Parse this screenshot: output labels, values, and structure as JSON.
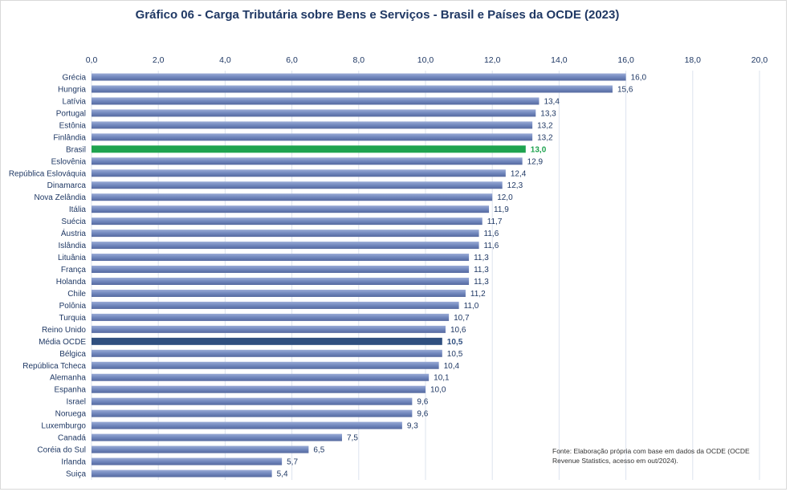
{
  "chart_data": {
    "type": "bar",
    "orientation": "horizontal",
    "title": "Gráfico 06 - Carga Tributária sobre Bens e Serviços - Brasil e Países da OCDE (2023)",
    "xlim": [
      0,
      20
    ],
    "x_ticks": [
      "0,0",
      "2,0",
      "4,0",
      "6,0",
      "8,0",
      "10,0",
      "12,0",
      "14,0",
      "16,0",
      "18,0",
      "20,0"
    ],
    "x_axis_position": "top",
    "grid": true,
    "categories": [
      "Grécia",
      "Hungria",
      "Latívia",
      "Portugal",
      "Estônia",
      "Finlândia",
      "Brasil",
      "Eslovênia",
      "República Eslováquia",
      "Dinamarca",
      "Nova Zelândia",
      "Itália",
      "Suécia",
      "Áustria",
      "Islândia",
      "Lituânia",
      "França",
      "Holanda",
      "Chile",
      "Polônia",
      "Turquia",
      "Reino Unido",
      "Média OCDE",
      "Bélgica",
      "República Tcheca",
      "Alemanha",
      "Espanha",
      "Israel",
      "Noruega",
      "Luxemburgo",
      "Canadá",
      "Coréia do Sul",
      "Irlanda",
      "Suiça"
    ],
    "values": [
      16.0,
      15.6,
      13.4,
      13.3,
      13.2,
      13.2,
      13.0,
      12.9,
      12.4,
      12.3,
      12.0,
      11.9,
      11.7,
      11.6,
      11.6,
      11.3,
      11.3,
      11.3,
      11.2,
      11.0,
      10.7,
      10.6,
      10.5,
      10.5,
      10.4,
      10.1,
      10.0,
      9.6,
      9.6,
      9.3,
      7.5,
      6.5,
      5.7,
      5.4
    ],
    "data_labels": [
      "16,0",
      "15,6",
      "13,4",
      "13,3",
      "13,2",
      "13,2",
      "13,0",
      "12,9",
      "12,4",
      "12,3",
      "12,0",
      "11,9",
      "11,7",
      "11,6",
      "11,6",
      "11,3",
      "11,3",
      "11,3",
      "11,2",
      "11,0",
      "10,7",
      "10,6",
      "10,5",
      "10,5",
      "10,4",
      "10,1",
      "10,0",
      "9,6",
      "9,6",
      "9,3",
      "7,5",
      "6,5",
      "5,7",
      "5,4"
    ],
    "highlights": {
      "Brasil": "#1ea34f",
      "Média OCDE": "#2f4f7f"
    },
    "bar_color": "#7187bd",
    "source": "Fonte:  Elaboração própria com base em dados da OCDE (OCDE Revenue Statistics, acesso em out/2024)."
  }
}
